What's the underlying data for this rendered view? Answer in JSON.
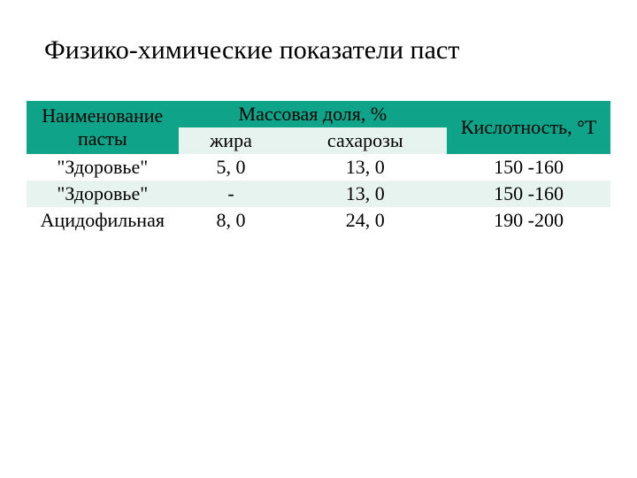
{
  "title": "Физико-химические показатели паст",
  "table": {
    "type": "table",
    "header_bg_color": "#0fa48a",
    "row_alt_color": "#e7f3ef",
    "row_base_color": "#ffffff",
    "text_color": "#000000",
    "font_family": "Times New Roman",
    "title_fontsize": 30,
    "cell_fontsize": 22,
    "columns": {
      "name": "Наименование пасты",
      "mass_fraction": "Массовая доля, %",
      "fat": "жира",
      "sugar": "сахарозы",
      "acidity": "Кислотность, °Т"
    },
    "rows": [
      {
        "name": "\"Здоровье\"",
        "fat": "5, 0",
        "sugar": "13, 0",
        "acidity": "150 -160"
      },
      {
        "name": "\"Здоровье\"",
        "fat": "-",
        "sugar": "13, 0",
        "acidity": "150 -160"
      },
      {
        "name": "Ацидофильная",
        "fat": "8, 0",
        "sugar": "24, 0",
        "acidity": "190 -200"
      }
    ]
  }
}
